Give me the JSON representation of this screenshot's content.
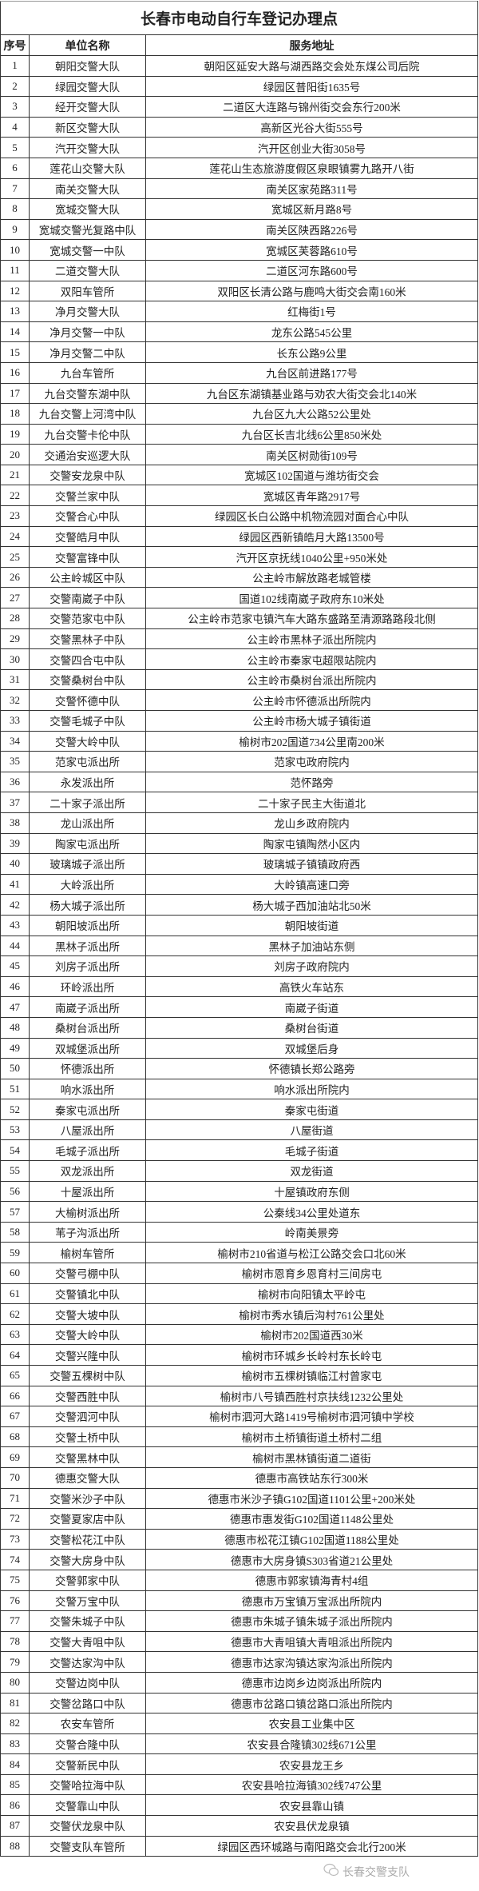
{
  "title": "长春市电动自行车登记办理点",
  "columns": {
    "seq": "序号",
    "name": "单位名称",
    "address": "服务地址"
  },
  "rows": [
    [
      "1",
      "朝阳交警大队",
      "朝阳区延安大路与湖西路交会处东煤公司后院"
    ],
    [
      "2",
      "绿园交警大队",
      "绿园区普阳街1635号"
    ],
    [
      "3",
      "经开交警大队",
      "二道区大连路与锦州街交会东行200米"
    ],
    [
      "4",
      "新区交警大队",
      "高新区光谷大街555号"
    ],
    [
      "5",
      "汽开交警大队",
      "汽开区创业大街3058号"
    ],
    [
      "6",
      "莲花山交警大队",
      "莲花山生态旅游度假区泉眼镇雾九路开八街"
    ],
    [
      "7",
      "南关交警大队",
      "南关区家苑路311号"
    ],
    [
      "8",
      "宽城交警大队",
      "宽城区新月路8号"
    ],
    [
      "9",
      "宽城交警光复路中队",
      "南关区陕西路226号"
    ],
    [
      "10",
      "宽城交警一中队",
      "宽城区芙蓉路610号"
    ],
    [
      "11",
      "二道交警大队",
      "二道区河东路600号"
    ],
    [
      "12",
      "双阳车管所",
      "双阳区长清公路与鹿鸣大街交会南160米"
    ],
    [
      "13",
      "净月交警大队",
      "红梅街1号"
    ],
    [
      "14",
      "净月交警一中队",
      "龙东公路545公里"
    ],
    [
      "15",
      "净月交警二中队",
      "长东公路9公里"
    ],
    [
      "16",
      "九台车管所",
      "九台区前进路177号"
    ],
    [
      "17",
      "九台交警东湖中队",
      "九台区东湖镇基业路与劝农大街交会北140米"
    ],
    [
      "18",
      "九台交警上河湾中队",
      "九台区九大公路52公里处"
    ],
    [
      "19",
      "九台交警卡伦中队",
      "九台区长吉北线6公里850米处"
    ],
    [
      "20",
      "交通治安巡逻大队",
      "南关区树勋街109号"
    ],
    [
      "21",
      "交警安龙泉中队",
      "宽城区102国道与潍坊街交会"
    ],
    [
      "22",
      "交警兰家中队",
      "宽城区青年路2917号"
    ],
    [
      "23",
      "交警合心中队",
      "绿园区长白公路中机物流园对面合心中队"
    ],
    [
      "24",
      "交警皓月中队",
      "绿园区西新镇皓月大路13500号"
    ],
    [
      "25",
      "交警富锋中队",
      "汽开区京抚线1040公里+950米处"
    ],
    [
      "26",
      "公主岭城区中队",
      "公主岭市解放路老城管楼"
    ],
    [
      "27",
      "交警南崴子中队",
      "国道102线南崴子政府东10米处"
    ],
    [
      "28",
      "交警范家屯中队",
      "公主岭市范家屯镇汽车大路东盛路至清源路路段北侧"
    ],
    [
      "29",
      "交警黑林子中队",
      "公主岭市黑林子派出所院内"
    ],
    [
      "30",
      "交警四合屯中队",
      "公主岭市秦家屯超限站院内"
    ],
    [
      "31",
      "交警桑树台中队",
      "公主岭市桑树台派出所院内"
    ],
    [
      "32",
      "交警怀德中队",
      "公主岭市怀德派出所院内"
    ],
    [
      "33",
      "交警毛城子中队",
      "公主岭市杨大城子镇街道"
    ],
    [
      "34",
      "交警大岭中队",
      "榆树市202国道734公里南200米"
    ],
    [
      "35",
      "范家屯派出所",
      "范家屯政府院内"
    ],
    [
      "36",
      "永发派出所",
      "范怀路旁"
    ],
    [
      "37",
      "二十家子派出所",
      "二十家子民主大街道北"
    ],
    [
      "38",
      "龙山派出所",
      "龙山乡政府院内"
    ],
    [
      "39",
      "陶家屯派出所",
      "陶家屯镇陶然小区内"
    ],
    [
      "40",
      "玻璃城子派出所",
      "玻璃城子镇镇政府西"
    ],
    [
      "41",
      "大岭派出所",
      "大岭镇高速口旁"
    ],
    [
      "42",
      "杨大城子派出所",
      "杨大城子西加油站北50米"
    ],
    [
      "43",
      "朝阳坡派出所",
      "朝阳坡街道"
    ],
    [
      "44",
      "黑林子派出所",
      "黑林子加油站东侧"
    ],
    [
      "45",
      "刘房子派出所",
      "刘房子政府院内"
    ],
    [
      "46",
      "环岭派出所",
      "高铁火车站东"
    ],
    [
      "47",
      "南崴子派出所",
      "南崴子街道"
    ],
    [
      "48",
      "桑树台派出所",
      "桑树台街道"
    ],
    [
      "49",
      "双城堡派出所",
      "双城堡后身"
    ],
    [
      "50",
      "怀德派出所",
      "怀德镇长郑公路旁"
    ],
    [
      "51",
      "响水派出所",
      "响水派出所院内"
    ],
    [
      "52",
      "秦家屯派出所",
      "秦家屯街道"
    ],
    [
      "53",
      "八屋派出所",
      "八屋街道"
    ],
    [
      "54",
      "毛城子派出所",
      "毛城子街道"
    ],
    [
      "55",
      "双龙派出所",
      "双龙街道"
    ],
    [
      "56",
      "十屋派出所",
      "十屋镇政府东侧"
    ],
    [
      "57",
      "大榆树派出所",
      "公秦线34公里处道东"
    ],
    [
      "58",
      "苇子沟派出所",
      "岭南美景旁"
    ],
    [
      "59",
      "榆树车管所",
      "榆树市210省道与松江公路交会口北60米"
    ],
    [
      "60",
      "交警弓棚中队",
      "榆树市恩育乡恩育村三间房屯"
    ],
    [
      "61",
      "交警镇北中队",
      "榆树市向阳镇太平岭屯"
    ],
    [
      "62",
      "交警大坡中队",
      "榆树市秀水镇后沟村761公里处"
    ],
    [
      "63",
      "交警大岭中队",
      "榆树市202国道西30米"
    ],
    [
      "64",
      "交警兴隆中队",
      "榆树市环城乡长岭村东长岭屯"
    ],
    [
      "65",
      "交警五棵树中队",
      "榆树市五棵树镇临江村曾家屯"
    ],
    [
      "66",
      "交警西胜中队",
      "榆树市八号镇西胜村京扶线1232公里处"
    ],
    [
      "67",
      "交警泗河中队",
      "榆树市泗河大路1419号榆树市泗河镇中学校"
    ],
    [
      "68",
      "交警土桥中队",
      "榆树市土桥镇街道土桥村二组"
    ],
    [
      "69",
      "交警黑林中队",
      "榆树市黑林镇街道二道街"
    ],
    [
      "70",
      "德惠交警大队",
      "德惠市高铁站东行300米"
    ],
    [
      "71",
      "交警米沙子中队",
      "德惠市米沙子镇G102国道1101公里+200米处"
    ],
    [
      "72",
      "交警夏家店中队",
      "德惠市惠发街G102国道1148公里处"
    ],
    [
      "73",
      "交警松花江中队",
      "德惠市松花江镇G102国道1188公里处"
    ],
    [
      "74",
      "交警大房身中队",
      "德惠市大房身镇S303省道21公里处"
    ],
    [
      "75",
      "交警郭家中队",
      "德惠市郭家镇海青村4组"
    ],
    [
      "76",
      "交警万宝中队",
      "德惠市万宝镇万宝派出所院内"
    ],
    [
      "77",
      "交警朱城子中队",
      "德惠市朱城子镇朱城子派出所院内"
    ],
    [
      "78",
      "交警大青咀中队",
      "德惠市大青咀镇大青咀派出所院内"
    ],
    [
      "79",
      "交警达家沟中队",
      "德惠市达家沟镇达家沟派出所院内"
    ],
    [
      "80",
      "交警边岗中队",
      "德惠市边岗乡边岗派出所院内"
    ],
    [
      "81",
      "交警岔路口中队",
      "德惠市岔路口镇岔路口派出所院内"
    ],
    [
      "82",
      "农安车管所",
      "农安县工业集中区"
    ],
    [
      "83",
      "交警合隆中队",
      "农安县合隆镇302线671公里"
    ],
    [
      "84",
      "交警新民中队",
      "农安县龙王乡"
    ],
    [
      "85",
      "交警哈拉海中队",
      "农安县哈拉海镇302线747公里"
    ],
    [
      "86",
      "交警靠山中队",
      "农安县靠山镇"
    ],
    [
      "87",
      "交警伏龙泉中队",
      "农安县伏龙泉镇"
    ],
    [
      "88",
      "交警支队车管所",
      "绿园区西环城路与南阳路交会北行200米"
    ]
  ],
  "watermark": {
    "text": "长春交警支队",
    "icon": "wechat-icon",
    "color": "#aaaaaa"
  }
}
